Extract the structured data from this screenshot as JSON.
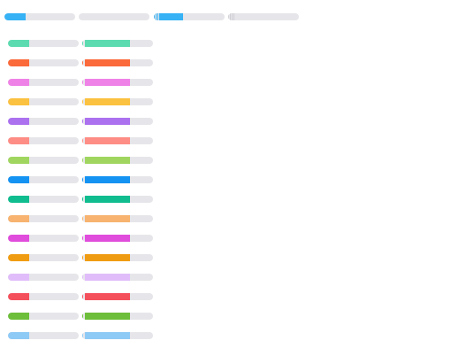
{
  "top_bars": [
    {
      "name": "progress-bar-1",
      "value": 0.3,
      "color": "#36b2f5",
      "style": "plain"
    },
    {
      "name": "progress-bar-2",
      "value": 0.0,
      "color": "#36b2f5",
      "style": "plain"
    },
    {
      "name": "progress-bar-3",
      "value": 0.33,
      "color": "#36b2f5",
      "style": "buffer"
    },
    {
      "name": "progress-bar-4",
      "value": 0.0,
      "color": "#36b2f5",
      "style": "buffer"
    }
  ],
  "rows": [
    {
      "color": "#5ddbb0",
      "a": 0.3,
      "b": 0.67
    },
    {
      "color": "#fb6a3b",
      "a": 0.3,
      "b": 0.67
    },
    {
      "color": "#ef82e6",
      "a": 0.3,
      "b": 0.67
    },
    {
      "color": "#fbc140",
      "a": 0.3,
      "b": 0.67
    },
    {
      "color": "#ab71ef",
      "a": 0.3,
      "b": 0.67
    },
    {
      "color": "#fe8d86",
      "a": 0.3,
      "b": 0.67
    },
    {
      "color": "#a0d660",
      "a": 0.3,
      "b": 0.67
    },
    {
      "color": "#1593f2",
      "a": 0.3,
      "b": 0.67
    },
    {
      "color": "#10bd8f",
      "a": 0.3,
      "b": 0.67
    },
    {
      "color": "#f7b36f",
      "a": 0.3,
      "b": 0.67
    },
    {
      "color": "#e04cdc",
      "a": 0.3,
      "b": 0.67
    },
    {
      "color": "#f09c12",
      "a": 0.3,
      "b": 0.67
    },
    {
      "color": "#e0bdfa",
      "a": 0.3,
      "b": 0.67
    },
    {
      "color": "#f4505c",
      "a": 0.3,
      "b": 0.67
    },
    {
      "color": "#6dbe3a",
      "a": 0.3,
      "b": 0.67
    },
    {
      "color": "#8ecaf6",
      "a": 0.3,
      "b": 0.67
    }
  ]
}
